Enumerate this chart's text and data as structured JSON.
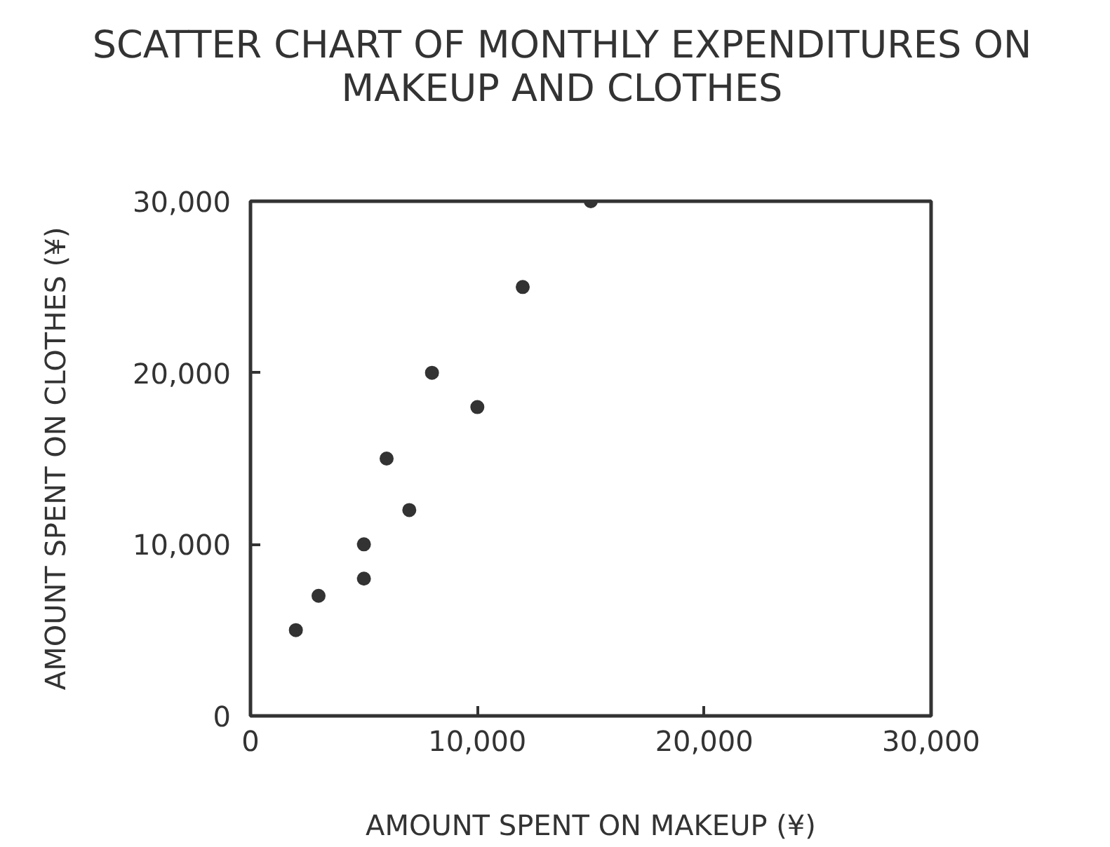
{
  "chart_data": {
    "type": "scatter",
    "title": "SCATTER CHART OF MONTHLY EXPENDITURES ON MAKEUP AND CLOTHES",
    "xlabel": "AMOUNT SPENT ON MAKEUP (¥)",
    "ylabel": "AMOUNT SPENT ON CLOTHES (¥)",
    "x": [
      2000,
      3000,
      5000,
      5000,
      6000,
      7000,
      8000,
      10000,
      12000,
      15000
    ],
    "values": [
      5000,
      7000,
      10000,
      8000,
      15000,
      12000,
      20000,
      18000,
      25000,
      30000
    ],
    "color": "#333333",
    "marker": "circle",
    "xlim": [
      0,
      30000
    ],
    "ylim": [
      0,
      30000
    ],
    "xticks": [
      0,
      {
        "value": 10000,
        "label": "10,000"
      },
      {
        "value": 20000,
        "label": "20,000"
      },
      {
        "value": 30000,
        "label": "30,000"
      }
    ],
    "yticks": [
      0,
      {
        "value": 10000,
        "label": "10,000"
      },
      {
        "value": 20000,
        "label": "20,000"
      },
      {
        "value": 30000,
        "label": "30,000"
      }
    ],
    "grid": false
  }
}
